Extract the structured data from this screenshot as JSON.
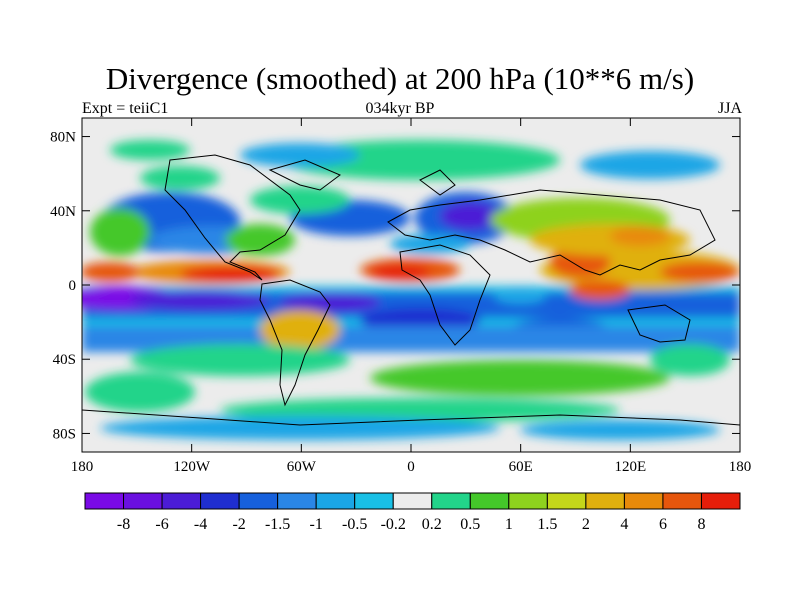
{
  "title": "Divergence (smoothed) at 200 hPa (10**6 m/s)",
  "left_string": "Expt = teiiC1",
  "center_string": "034kyr BP",
  "right_string": "JJA",
  "lon_ticks": [
    {
      "value": -180,
      "label": "180"
    },
    {
      "value": -120,
      "label": "120W"
    },
    {
      "value": -60,
      "label": "60W"
    },
    {
      "value": 0,
      "label": "0"
    },
    {
      "value": 60,
      "label": "60E"
    },
    {
      "value": 120,
      "label": "120E"
    },
    {
      "value": 180,
      "label": "180"
    }
  ],
  "lat_ticks": [
    {
      "value": 80,
      "label": "80N"
    },
    {
      "value": 40,
      "label": "40N"
    },
    {
      "value": 0,
      "label": "0"
    },
    {
      "value": -40,
      "label": "40S"
    },
    {
      "value": -80,
      "label": "80S"
    }
  ],
  "colorbar": {
    "colors": [
      "#7a0ae6",
      "#6a10e0",
      "#4b1cd6",
      "#1f2ed0",
      "#1660dc",
      "#2a86e6",
      "#1aa6e6",
      "#19c0e6",
      "#ececec",
      "#22d48a",
      "#44c82a",
      "#8ed21e",
      "#c4d61a",
      "#e0b00e",
      "#e88a0a",
      "#e6560c",
      "#e61e0a"
    ],
    "labels": [
      "-8",
      "-6",
      "-4",
      "-2",
      "-1.5",
      "-1",
      "-0.5",
      "-0.2",
      "0.2",
      "0.5",
      "1",
      "1.5",
      "2",
      "4",
      "6",
      "8"
    ]
  },
  "map_background": "#ececec"
}
